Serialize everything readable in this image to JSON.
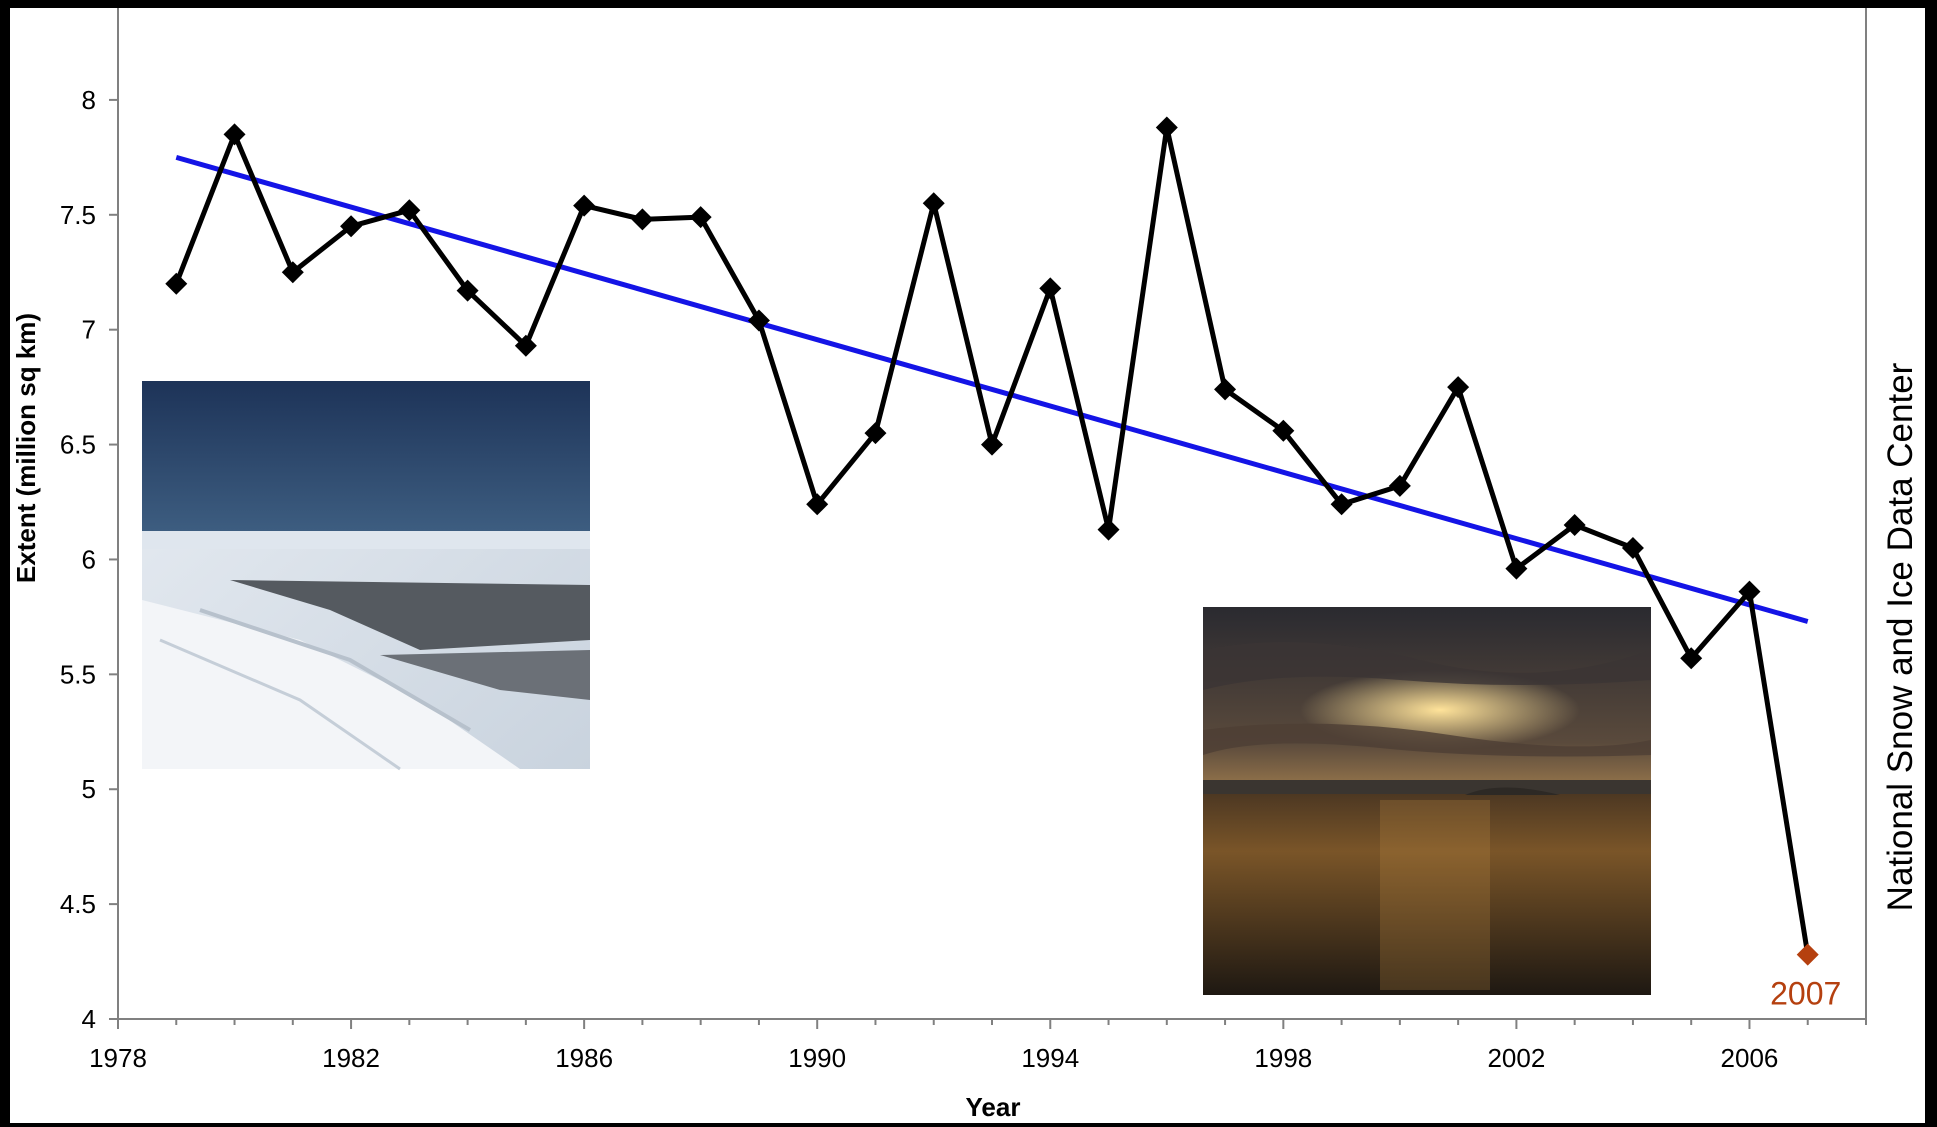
{
  "chart_data": {
    "type": "line",
    "xlabel": "Year",
    "ylabel": "Extent (million sq km)",
    "xlim": [
      1978,
      2008
    ],
    "ylim": [
      4,
      8.4
    ],
    "xticks": [
      "1978",
      "1982",
      "1986",
      "1990",
      "1994",
      "1998",
      "2002",
      "2006"
    ],
    "yticks": [
      "4",
      "4.5",
      "5",
      "5.5",
      "6",
      "6.5",
      "7",
      "7.5",
      "8"
    ],
    "series": [
      {
        "color": "#000000",
        "marker": "diamond",
        "x": [
          1979,
          1980,
          1981,
          1982,
          1983,
          1984,
          1985,
          1986,
          1987,
          1988,
          1989,
          1990,
          1991,
          1992,
          1993,
          1994,
          1995,
          1996,
          1997,
          1998,
          1999,
          2000,
          2001,
          2002,
          2003,
          2004,
          2005,
          2006,
          2007
        ],
        "values": [
          7.2,
          7.85,
          7.25,
          7.45,
          7.52,
          7.17,
          6.93,
          7.54,
          7.48,
          7.49,
          7.04,
          6.24,
          6.55,
          7.55,
          6.5,
          7.18,
          6.13,
          7.88,
          6.74,
          6.56,
          6.24,
          6.32,
          6.75,
          5.96,
          6.15,
          6.05,
          5.57,
          5.86,
          4.28
        ]
      }
    ],
    "trendline": {
      "color": "#1414e6",
      "x": [
        1979,
        2007
      ],
      "values": [
        7.75,
        5.73
      ]
    },
    "highlight": {
      "x": 2007,
      "value": 4.28,
      "label": "2007",
      "color": "#b5400f"
    },
    "side_label": "National Snow and Ice Data Center",
    "grid": false,
    "legend": "none"
  },
  "photos": [
    {
      "name": "sea-ice-photo",
      "description": "ice"
    },
    {
      "name": "sunset-sea-photo",
      "description": "sunset"
    }
  ]
}
